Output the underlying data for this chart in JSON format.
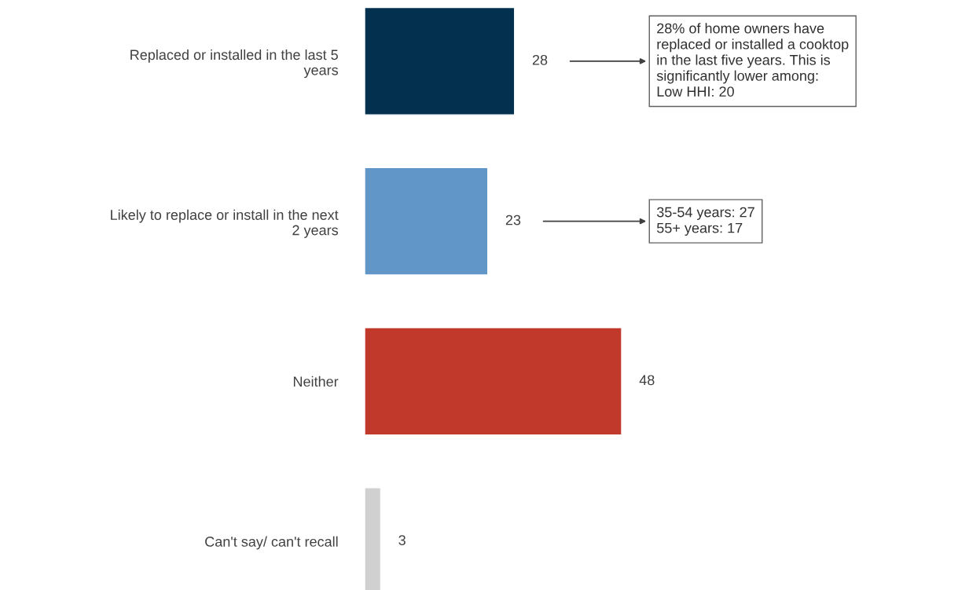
{
  "chart_data": {
    "type": "bar",
    "orientation": "horizontal",
    "data_labels": true,
    "tick_labels": "y",
    "categories": [
      "Replaced or installed in the last 5\nyears",
      "Likely to replace or install in the next\n2 years",
      "Neither",
      "Can't say/ can't recall"
    ],
    "values": [
      28,
      23,
      48,
      3
    ],
    "colors": [
      "#03304f",
      "#6096c8",
      "#c0392b",
      "#d0d0d0"
    ],
    "annotations": [
      "28% of home owners have\nreplaced or installed a cooktop\nin the last five years. This is\nsignificantly lower among:\nLow HHI: 20",
      "35-54 years: 27\n55+ years: 17"
    ]
  }
}
